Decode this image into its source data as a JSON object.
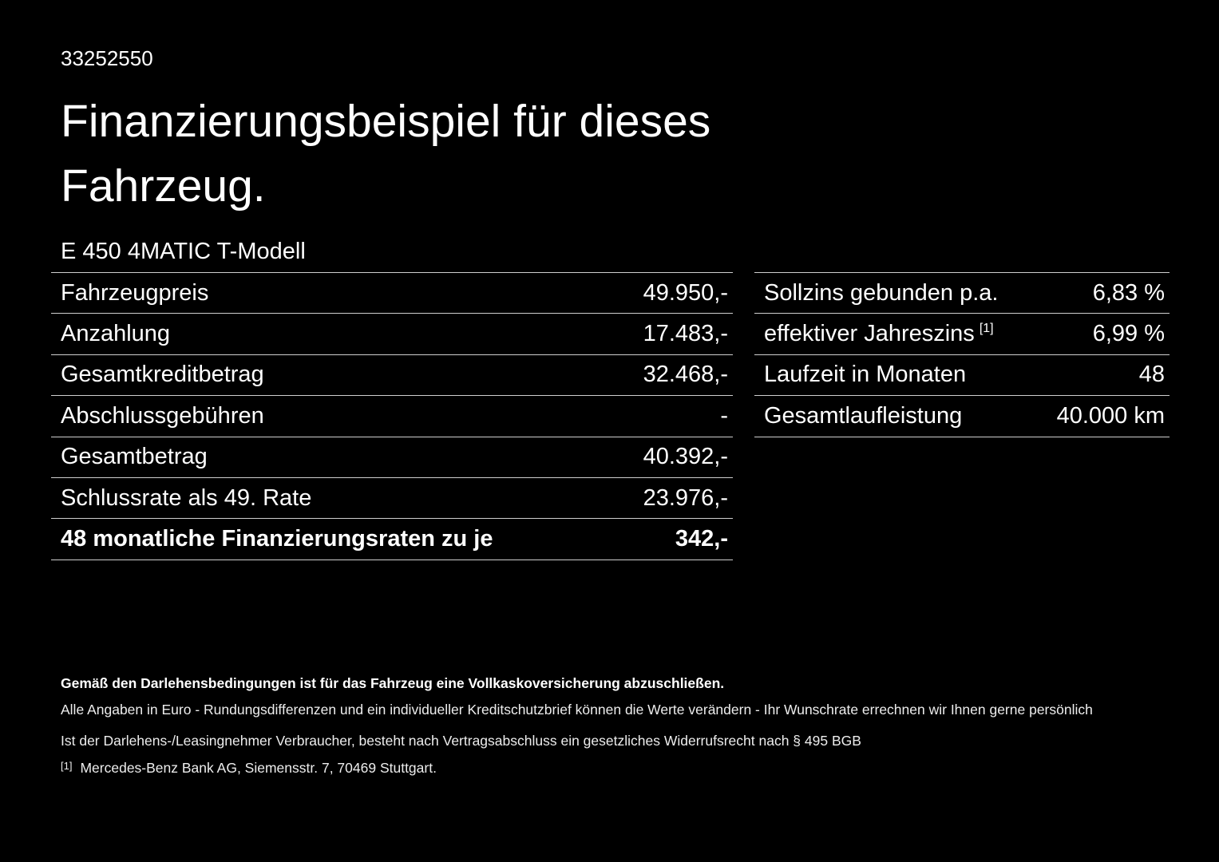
{
  "colors": {
    "background": "#000000",
    "text": "#ffffff",
    "divider": "#cfcfcf"
  },
  "header": {
    "document_id": "33252550",
    "title_lines": [
      "Finanzierungsbeispiel für dieses",
      "Fahrzeug."
    ],
    "vehicle_model": "E 450 4MATIC T-Modell"
  },
  "left_table": {
    "rows": [
      {
        "label": "Fahrzeugpreis",
        "value": "49.950,-"
      },
      {
        "label": "Anzahlung",
        "value": "17.483,-"
      },
      {
        "label": "Gesamtkreditbetrag",
        "value": "32.468,-"
      },
      {
        "label": "Abschlussgebühren",
        "value": "-"
      },
      {
        "label": "Gesamtbetrag",
        "value": "40.392,-"
      },
      {
        "label": "Schlussrate als 49. Rate",
        "value": "23.976,-"
      },
      {
        "label": "48 monatliche Finanzierungsraten zu je",
        "value": "342,-"
      }
    ]
  },
  "right_table": {
    "rows": [
      {
        "label": "Sollzins gebunden p.a.",
        "value": "6,83 %"
      },
      {
        "label": "effektiver Jahreszins",
        "footnote": "[1]",
        "value": "6,99 %"
      },
      {
        "label": "Laufzeit in Monaten",
        "value": "48"
      },
      {
        "label": "Gesamtlaufleistung",
        "value": "40.000 km"
      }
    ]
  },
  "footer": {
    "insurance_note": "Gemäß den Darlehensbedingungen ist für das Fahrzeug eine Vollkaskoversicherung abzuschließen.",
    "disclaimer": "Alle Angaben in Euro - Rundungsdifferenzen und ein individueller Kreditschutzbrief können die Werte verändern - Ihr Wunschrate errechnen wir Ihnen gerne persönlich",
    "revocation_note": "Ist der Darlehens-/Leasingnehmer Verbraucher, besteht nach Vertragsabschluss ein gesetzliches Widerrufsrecht nach § 495 BGB",
    "footnote_marker": "[1]",
    "footnote_text": "Mercedes-Benz Bank AG, Siemensstr. 7, 70469 Stuttgart."
  }
}
